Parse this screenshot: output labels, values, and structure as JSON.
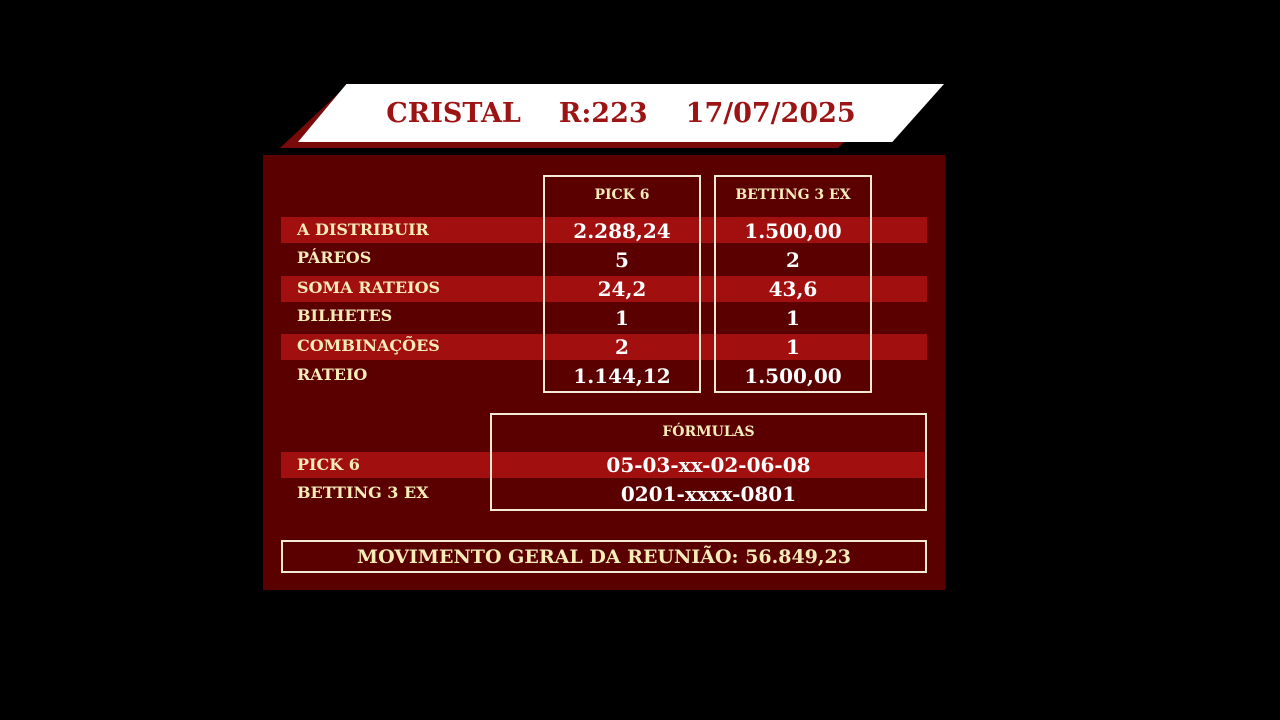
{
  "header": {
    "track": "CRISTAL",
    "race": "R:223",
    "date": "17/07/2025"
  },
  "columns": [
    "PICK 6",
    "BETTING 3 EX"
  ],
  "rows": [
    {
      "label": "A DISTRIBUIR",
      "values": [
        "2.288,24",
        "1.500,00"
      ]
    },
    {
      "label": "PÁREOS",
      "values": [
        "5",
        "2"
      ]
    },
    {
      "label": "SOMA RATEIOS",
      "values": [
        "24,2",
        "43,6"
      ]
    },
    {
      "label": "BILHETES",
      "values": [
        "1",
        "1"
      ]
    },
    {
      "label": "COMBINAÇÕES",
      "values": [
        "2",
        "1"
      ]
    },
    {
      "label": "RATEIO",
      "values": [
        "1.144,12",
        "1.500,00"
      ]
    }
  ],
  "formulas": {
    "title": "FÓRMULAS",
    "items": [
      {
        "label": "PICK 6",
        "value": "05-03-xx-02-06-08"
      },
      {
        "label": "BETTING 3 EX",
        "value": "0201-xxxx-0801"
      }
    ]
  },
  "movimento": "MOVIMENTO GERAL DA REUNIÃO: 56.849,23",
  "colors": {
    "panel": "#5a0000",
    "stripe": "#a20f0f",
    "header_text": "#9c1414",
    "label_text": "#f6ecb8"
  }
}
